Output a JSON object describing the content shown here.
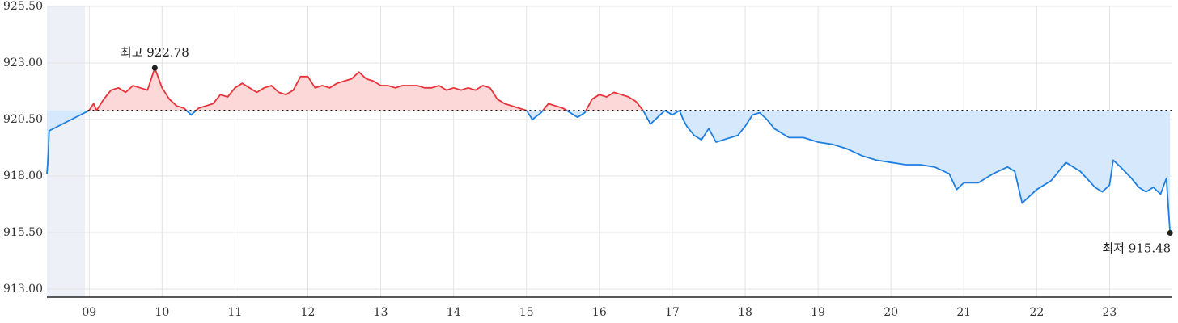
{
  "chart_data": {
    "type": "line",
    "title": "",
    "xlabel": "",
    "ylabel": "",
    "ylim": [
      913.0,
      925.5
    ],
    "xlim": [
      8.42,
      23.85
    ],
    "y_ticks": [
      "913.00",
      "915.50",
      "918.00",
      "920.50",
      "923.00",
      "925.50"
    ],
    "x_ticks": [
      {
        "x": 9,
        "label": "09"
      },
      {
        "x": 10,
        "label": "10"
      },
      {
        "x": 11,
        "label": "11"
      },
      {
        "x": 12,
        "label": "12"
      },
      {
        "x": 13,
        "label": "13"
      },
      {
        "x": 14,
        "label": "14"
      },
      {
        "x": 15,
        "label": "15"
      },
      {
        "x": 16,
        "label": "16"
      },
      {
        "x": 17,
        "label": "17"
      },
      {
        "x": 18,
        "label": "18"
      },
      {
        "x": 19,
        "label": "19"
      },
      {
        "x": 20,
        "label": "20"
      },
      {
        "x": 21,
        "label": "21"
      },
      {
        "x": 22,
        "label": "22"
      },
      {
        "x": 23,
        "label": "23"
      }
    ],
    "baseline": 920.9,
    "grid": true,
    "up_color": "#e8333a",
    "down_color": "#1f7fe0",
    "up_fill": "#fcd8d8",
    "down_fill": "#d6e8fb",
    "shaded_region_color": "#eef0f7",
    "high": {
      "x": 9.9,
      "value": 922.78,
      "label": "최고 922.78"
    },
    "low": {
      "x": 23.83,
      "value": 915.48,
      "label": "최저 915.48"
    },
    "series": [
      {
        "points": [
          [
            8.42,
            918.1
          ],
          [
            8.43,
            918.5
          ],
          [
            8.44,
            919.1
          ],
          [
            8.45,
            920.0
          ],
          [
            9.0,
            920.9
          ],
          [
            9.06,
            921.2
          ],
          [
            9.1,
            920.9
          ],
          [
            9.2,
            921.4
          ],
          [
            9.3,
            921.8
          ],
          [
            9.4,
            921.9
          ],
          [
            9.5,
            921.7
          ],
          [
            9.6,
            922.0
          ],
          [
            9.7,
            921.9
          ],
          [
            9.8,
            921.8
          ],
          [
            9.9,
            922.78
          ],
          [
            10.0,
            921.9
          ],
          [
            10.1,
            921.4
          ],
          [
            10.2,
            921.1
          ],
          [
            10.3,
            921.0
          ],
          [
            10.4,
            920.7
          ],
          [
            10.5,
            921.0
          ],
          [
            10.6,
            921.1
          ],
          [
            10.7,
            921.2
          ],
          [
            10.8,
            921.6
          ],
          [
            10.9,
            921.5
          ],
          [
            11.0,
            921.9
          ],
          [
            11.1,
            922.1
          ],
          [
            11.2,
            921.9
          ],
          [
            11.3,
            921.7
          ],
          [
            11.4,
            921.9
          ],
          [
            11.5,
            922.0
          ],
          [
            11.6,
            921.7
          ],
          [
            11.7,
            921.6
          ],
          [
            11.8,
            921.8
          ],
          [
            11.9,
            922.4
          ],
          [
            12.0,
            922.4
          ],
          [
            12.1,
            921.9
          ],
          [
            12.2,
            922.0
          ],
          [
            12.3,
            921.9
          ],
          [
            12.4,
            922.1
          ],
          [
            12.5,
            922.2
          ],
          [
            12.6,
            922.3
          ],
          [
            12.7,
            922.6
          ],
          [
            12.8,
            922.3
          ],
          [
            12.9,
            922.2
          ],
          [
            13.0,
            922.0
          ],
          [
            13.1,
            922.0
          ],
          [
            13.2,
            921.9
          ],
          [
            13.3,
            922.0
          ],
          [
            13.4,
            922.0
          ],
          [
            13.5,
            922.0
          ],
          [
            13.6,
            921.9
          ],
          [
            13.7,
            921.9
          ],
          [
            13.8,
            922.0
          ],
          [
            13.9,
            921.8
          ],
          [
            14.0,
            921.9
          ],
          [
            14.1,
            921.8
          ],
          [
            14.2,
            921.9
          ],
          [
            14.3,
            921.8
          ],
          [
            14.4,
            922.0
          ],
          [
            14.5,
            921.9
          ],
          [
            14.6,
            921.4
          ],
          [
            14.7,
            921.2
          ],
          [
            14.8,
            921.1
          ],
          [
            14.9,
            921.0
          ],
          [
            15.0,
            920.9
          ],
          [
            15.08,
            920.5
          ],
          [
            15.2,
            920.8
          ],
          [
            15.3,
            921.2
          ],
          [
            15.4,
            921.1
          ],
          [
            15.5,
            921.0
          ],
          [
            15.6,
            920.8
          ],
          [
            15.7,
            920.6
          ],
          [
            15.8,
            920.8
          ],
          [
            15.9,
            921.4
          ],
          [
            16.0,
            921.6
          ],
          [
            16.1,
            921.5
          ],
          [
            16.2,
            921.7
          ],
          [
            16.3,
            921.6
          ],
          [
            16.4,
            921.5
          ],
          [
            16.5,
            921.3
          ],
          [
            16.6,
            920.9
          ],
          [
            16.7,
            920.3
          ],
          [
            16.8,
            920.6
          ],
          [
            16.9,
            920.9
          ],
          [
            17.0,
            920.7
          ],
          [
            17.1,
            920.9
          ],
          [
            17.15,
            920.5
          ],
          [
            17.2,
            920.2
          ],
          [
            17.3,
            919.8
          ],
          [
            17.4,
            919.6
          ],
          [
            17.5,
            920.1
          ],
          [
            17.6,
            919.5
          ],
          [
            17.7,
            919.6
          ],
          [
            17.8,
            919.7
          ],
          [
            17.9,
            919.8
          ],
          [
            18.0,
            920.2
          ],
          [
            18.1,
            920.7
          ],
          [
            18.2,
            920.8
          ],
          [
            18.3,
            920.5
          ],
          [
            18.4,
            920.1
          ],
          [
            18.6,
            919.7
          ],
          [
            18.8,
            919.7
          ],
          [
            19.0,
            919.5
          ],
          [
            19.2,
            919.4
          ],
          [
            19.4,
            919.2
          ],
          [
            19.6,
            918.9
          ],
          [
            19.8,
            918.7
          ],
          [
            20.0,
            918.6
          ],
          [
            20.2,
            918.5
          ],
          [
            20.4,
            918.5
          ],
          [
            20.6,
            918.4
          ],
          [
            20.8,
            918.1
          ],
          [
            20.9,
            917.4
          ],
          [
            21.0,
            917.7
          ],
          [
            21.2,
            917.7
          ],
          [
            21.4,
            918.1
          ],
          [
            21.6,
            918.4
          ],
          [
            21.7,
            918.2
          ],
          [
            21.8,
            916.8
          ],
          [
            22.0,
            917.4
          ],
          [
            22.2,
            917.8
          ],
          [
            22.4,
            918.6
          ],
          [
            22.6,
            918.2
          ],
          [
            22.8,
            917.5
          ],
          [
            22.9,
            917.3
          ],
          [
            23.0,
            917.6
          ],
          [
            23.05,
            918.7
          ],
          [
            23.15,
            918.4
          ],
          [
            23.3,
            917.9
          ],
          [
            23.4,
            917.5
          ],
          [
            23.5,
            917.3
          ],
          [
            23.6,
            917.5
          ],
          [
            23.7,
            917.2
          ],
          [
            23.78,
            917.9
          ],
          [
            23.8,
            916.9
          ],
          [
            23.83,
            915.48
          ]
        ]
      }
    ]
  }
}
